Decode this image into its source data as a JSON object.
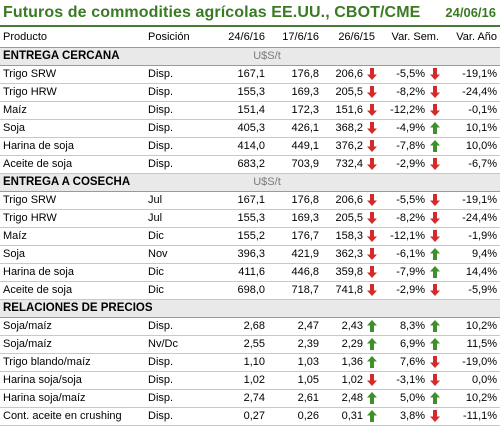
{
  "title": "Futuros de commodities agrícolas EE.UU., CBOT/CME",
  "date": "24/06/16",
  "columns": [
    "Producto",
    "Posición",
    "24/6/16",
    "17/6/16",
    "26/6/15",
    "Var. Sem.",
    "Var. Año"
  ],
  "colors": {
    "up": "#3f8f2a",
    "down": "#d42a2a",
    "title": "#3b7a25"
  },
  "sections": [
    {
      "name": "ENTREGA CERCANA",
      "unit": "U$S/t",
      "rows": [
        {
          "producto": "Trigo SRW",
          "posicion": "Disp.",
          "v1": "167,1",
          "v2": "176,8",
          "v3": "206,6",
          "arrow1": "down",
          "sem": "-5,5%",
          "arrow2": "down",
          "anio": "-19,1%"
        },
        {
          "producto": "Trigo HRW",
          "posicion": "Disp.",
          "v1": "155,3",
          "v2": "169,3",
          "v3": "205,5",
          "arrow1": "down",
          "sem": "-8,2%",
          "arrow2": "down",
          "anio": "-24,4%"
        },
        {
          "producto": "Maíz",
          "posicion": "Disp.",
          "v1": "151,4",
          "v2": "172,3",
          "v3": "151,6",
          "arrow1": "down",
          "sem": "-12,2%",
          "arrow2": "down",
          "anio": "-0,1%"
        },
        {
          "producto": "Soja",
          "posicion": "Disp.",
          "v1": "405,3",
          "v2": "426,1",
          "v3": "368,2",
          "arrow1": "down",
          "sem": "-4,9%",
          "arrow2": "up",
          "anio": "10,1%"
        },
        {
          "producto": "Harina de soja",
          "posicion": "Disp.",
          "v1": "414,0",
          "v2": "449,1",
          "v3": "376,2",
          "arrow1": "down",
          "sem": "-7,8%",
          "arrow2": "up",
          "anio": "10,0%"
        },
        {
          "producto": "Aceite de soja",
          "posicion": "Disp.",
          "v1": "683,2",
          "v2": "703,9",
          "v3": "732,4",
          "arrow1": "down",
          "sem": "-2,9%",
          "arrow2": "down",
          "anio": "-6,7%"
        }
      ]
    },
    {
      "name": "ENTREGA A COSECHA",
      "unit": "U$S/t",
      "rows": [
        {
          "producto": "Trigo SRW",
          "posicion": "Jul",
          "v1": "167,1",
          "v2": "176,8",
          "v3": "206,6",
          "arrow1": "down",
          "sem": "-5,5%",
          "arrow2": "down",
          "anio": "-19,1%"
        },
        {
          "producto": "Trigo HRW",
          "posicion": "Jul",
          "v1": "155,3",
          "v2": "169,3",
          "v3": "205,5",
          "arrow1": "down",
          "sem": "-8,2%",
          "arrow2": "down",
          "anio": "-24,4%"
        },
        {
          "producto": "Maíz",
          "posicion": "Dic",
          "v1": "155,2",
          "v2": "176,7",
          "v3": "158,3",
          "arrow1": "down",
          "sem": "-12,1%",
          "arrow2": "down",
          "anio": "-1,9%"
        },
        {
          "producto": "Soja",
          "posicion": "Nov",
          "v1": "396,3",
          "v2": "421,9",
          "v3": "362,3",
          "arrow1": "down",
          "sem": "-6,1%",
          "arrow2": "up",
          "anio": "9,4%"
        },
        {
          "producto": "Harina de soja",
          "posicion": "Dic",
          "v1": "411,6",
          "v2": "446,8",
          "v3": "359,8",
          "arrow1": "down",
          "sem": "-7,9%",
          "arrow2": "up",
          "anio": "14,4%"
        },
        {
          "producto": "Aceite de soja",
          "posicion": "Dic",
          "v1": "698,0",
          "v2": "718,7",
          "v3": "741,8",
          "arrow1": "down",
          "sem": "-2,9%",
          "arrow2": "down",
          "anio": "-5,9%"
        }
      ]
    },
    {
      "name": "RELACIONES DE PRECIOS",
      "unit": "",
      "rows": [
        {
          "producto": "Soja/maíz",
          "posicion": "Disp.",
          "v1": "2,68",
          "v2": "2,47",
          "v3": "2,43",
          "arrow1": "up",
          "sem": "8,3%",
          "arrow2": "up",
          "anio": "10,2%"
        },
        {
          "producto": "Soja/maíz",
          "posicion": "Nv/Dc",
          "v1": "2,55",
          "v2": "2,39",
          "v3": "2,29",
          "arrow1": "up",
          "sem": "6,9%",
          "arrow2": "up",
          "anio": "11,5%"
        },
        {
          "producto": "Trigo blando/maíz",
          "posicion": "Disp.",
          "v1": "1,10",
          "v2": "1,03",
          "v3": "1,36",
          "arrow1": "up",
          "sem": "7,6%",
          "arrow2": "down",
          "anio": "-19,0%"
        },
        {
          "producto": "Harina soja/soja",
          "posicion": "Disp.",
          "v1": "1,02",
          "v2": "1,05",
          "v3": "1,02",
          "arrow1": "down",
          "sem": "-3,1%",
          "arrow2": "down",
          "anio": "0,0%"
        },
        {
          "producto": "Harina soja/maíz",
          "posicion": "Disp.",
          "v1": "2,74",
          "v2": "2,61",
          "v3": "2,48",
          "arrow1": "up",
          "sem": "5,0%",
          "arrow2": "up",
          "anio": "10,2%"
        },
        {
          "producto": "Cont. aceite en crushing",
          "posicion": "Disp.",
          "v1": "0,27",
          "v2": "0,26",
          "v3": "0,31",
          "arrow1": "up",
          "sem": "3,8%",
          "arrow2": "down",
          "anio": "-11,1%"
        }
      ]
    }
  ]
}
